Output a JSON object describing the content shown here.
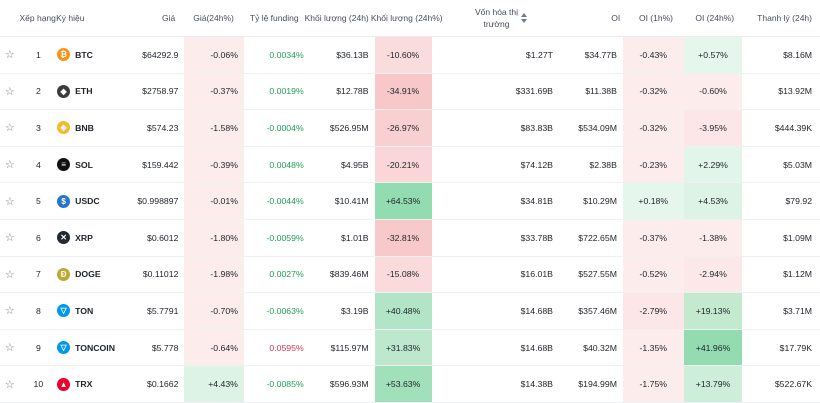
{
  "header": {
    "rank": "Xếp hạng",
    "symbol": "Ký hiệu",
    "price": "Giá",
    "price24": "Giá(24h%)",
    "funding": "Tỷ lệ funding",
    "volume": "Khối lượng (24h)",
    "volume_change": "Khối lượng (24h%)",
    "mcap_line1": "Vốn hóa thị",
    "mcap_line2": "trường",
    "oi": "OI",
    "oi1h": "OI (1h%)",
    "oi24h": "OI (24h%)",
    "liq": "Thanh lý (24h)"
  },
  "colors": {
    "red_light": "#fdecec",
    "red_mid": "#f8c7c9",
    "green_light": "#e5f6ec",
    "green_mid": "#b7e7cb",
    "green_strong": "#93dcb2",
    "funding_positive": "#1f9d55",
    "funding_negative": "#d9304f"
  },
  "rows": [
    {
      "rank": "1",
      "symbol": "BTC",
      "icon": "bitcoin-icon",
      "icon_color": "#f7931a",
      "glyph": "₿",
      "price": "$64292.9",
      "p24": "-0.06%",
      "p24_bg": "#fdecec",
      "funding": "0.0034%",
      "funding_sign": "pos",
      "volume": "$36.13B",
      "vc": "-10.60%",
      "vc_bg": "#fbdcdd",
      "mcap": "$1.27T",
      "oi": "$34.77B",
      "oi1": "-0.43%",
      "oi1_bg": "#fdecec",
      "oi24": "+0.57%",
      "oi24_bg": "#e5f6ec",
      "liq": "$8.16M"
    },
    {
      "rank": "2",
      "symbol": "ETH",
      "icon": "ethereum-icon",
      "icon_color": "#3c3c3d",
      "glyph": "◆",
      "price": "$2758.97",
      "p24": "-0.37%",
      "p24_bg": "#fdecec",
      "funding": "0.0019%",
      "funding_sign": "pos",
      "volume": "$12.78B",
      "vc": "-34.91%",
      "vc_bg": "#f8c7c9",
      "mcap": "$331.69B",
      "oi": "$11.38B",
      "oi1": "-0.32%",
      "oi1_bg": "#fdecec",
      "oi24": "-0.60%",
      "oi24_bg": "#fdecec",
      "liq": "$13.92M"
    },
    {
      "rank": "3",
      "symbol": "BNB",
      "icon": "bnb-icon",
      "icon_color": "#f3ba2f",
      "glyph": "◈",
      "price": "$574.23",
      "p24": "-1.58%",
      "p24_bg": "#fdecec",
      "funding": "-0.0004%",
      "funding_sign": "pos",
      "volume": "$526.95M",
      "vc": "-26.97%",
      "vc_bg": "#f9d0d2",
      "mcap": "$83.83B",
      "oi": "$534.09M",
      "oi1": "-0.32%",
      "oi1_bg": "#fdecec",
      "oi24": "-3.95%",
      "oi24_bg": "#fce6e7",
      "liq": "$444.39K"
    },
    {
      "rank": "4",
      "symbol": "SOL",
      "icon": "solana-icon",
      "icon_color": "#111111",
      "glyph": "≡",
      "price": "$159.442",
      "p24": "-0.39%",
      "p24_bg": "#fdecec",
      "funding": "0.0048%",
      "funding_sign": "pos",
      "volume": "$4.95B",
      "vc": "-20.21%",
      "vc_bg": "#fad6d8",
      "mcap": "$74.12B",
      "oi": "$2.38B",
      "oi1": "-0.23%",
      "oi1_bg": "#fdecec",
      "oi24": "+2.29%",
      "oi24_bg": "#e2f5ea",
      "liq": "$5.03M"
    },
    {
      "rank": "5",
      "symbol": "USDC",
      "icon": "usdc-icon",
      "icon_color": "#2775ca",
      "glyph": "$",
      "price": "$0.998897",
      "p24": "-0.01%",
      "p24_bg": "#fdecec",
      "funding": "-0.0044%",
      "funding_sign": "pos",
      "volume": "$10.41M",
      "vc": "+64.53%",
      "vc_bg": "#93dcb2",
      "mcap": "$34.81B",
      "oi": "$10.29M",
      "oi1": "+0.18%",
      "oi1_bg": "#e5f6ec",
      "oi24": "+4.53%",
      "oi24_bg": "#dcf3e5",
      "liq": "$79.92"
    },
    {
      "rank": "6",
      "symbol": "XRP",
      "icon": "xrp-icon",
      "icon_color": "#23292f",
      "glyph": "✕",
      "price": "$0.6012",
      "p24": "-1.80%",
      "p24_bg": "#fdecec",
      "funding": "-0.0059%",
      "funding_sign": "pos",
      "volume": "$1.01B",
      "vc": "-32.81%",
      "vc_bg": "#f8c9cb",
      "mcap": "$33.78B",
      "oi": "$722.65M",
      "oi1": "-0.37%",
      "oi1_bg": "#fdecec",
      "oi24": "-1.38%",
      "oi24_bg": "#fdecec",
      "liq": "$1.09M"
    },
    {
      "rank": "7",
      "symbol": "DOGE",
      "icon": "dogecoin-icon",
      "icon_color": "#c2a633",
      "glyph": "Ð",
      "price": "$0.11012",
      "p24": "-1.98%",
      "p24_bg": "#fdecec",
      "funding": "0.0027%",
      "funding_sign": "pos",
      "volume": "$839.46M",
      "vc": "-15.08%",
      "vc_bg": "#fbdadb",
      "mcap": "$16.01B",
      "oi": "$527.55M",
      "oi1": "-0.52%",
      "oi1_bg": "#fdecec",
      "oi24": "-2.94%",
      "oi24_bg": "#fce8e9",
      "liq": "$1.12M"
    },
    {
      "rank": "8",
      "symbol": "TON",
      "icon": "ton-icon",
      "icon_color": "#0098ea",
      "glyph": "▽",
      "price": "$5.7791",
      "p24": "-0.70%",
      "p24_bg": "#fdecec",
      "funding": "-0.0063%",
      "funding_sign": "pos",
      "volume": "$3.19B",
      "vc": "+40.48%",
      "vc_bg": "#b2e5c7",
      "mcap": "$14.68B",
      "oi": "$357.46M",
      "oi1": "-2.79%",
      "oi1_bg": "#fce6e7",
      "oi24": "+19.13%",
      "oi24_bg": "#c3eacf",
      "liq": "$3.71M"
    },
    {
      "rank": "9",
      "symbol": "TONCOIN",
      "icon": "toncoin-icon",
      "icon_color": "#0098ea",
      "glyph": "▽",
      "price": "$5.778",
      "p24": "-0.64%",
      "p24_bg": "#fdecec",
      "funding": "0.0595%",
      "funding_sign": "neg",
      "volume": "$115.97M",
      "vc": "+31.83%",
      "vc_bg": "#bde8ce",
      "mcap": "$14.68B",
      "oi": "$40.32M",
      "oi1": "-1.35%",
      "oi1_bg": "#fdecec",
      "oi24": "+41.96%",
      "oi24_bg": "#93dcb2",
      "liq": "$17.79K"
    },
    {
      "rank": "10",
      "symbol": "TRX",
      "icon": "tron-icon",
      "icon_color": "#eb0029",
      "glyph": "▲",
      "price": "$0.1662",
      "p24": "+4.43%",
      "p24_bg": "#dcf3e5",
      "funding": "-0.0085%",
      "funding_sign": "pos",
      "volume": "$596.93M",
      "vc": "+53.63%",
      "vc_bg": "#a2e0bb",
      "mcap": "$14.38B",
      "oi": "$194.99M",
      "oi1": "-1.75%",
      "oi1_bg": "#fdecec",
      "oi24": "+13.79%",
      "oi24_bg": "#cdeed9",
      "liq": "$522.67K"
    }
  ]
}
